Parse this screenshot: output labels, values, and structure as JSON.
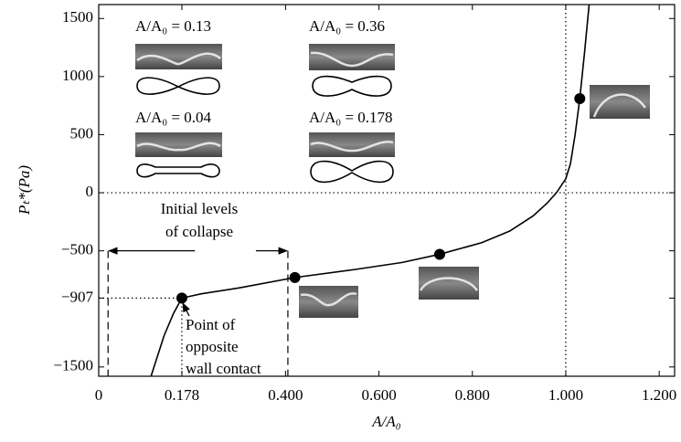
{
  "chart_data": {
    "type": "line",
    "xlabel": "A/A₀",
    "ylabel": "Pₜ*(Pa)",
    "xlim": [
      0,
      1.233
    ],
    "ylim": [
      -1580,
      1620
    ],
    "xticks": [
      0,
      {
        "value": 0.178,
        "label": "0.178"
      },
      {
        "value": 0.4,
        "label": "0.400"
      },
      {
        "value": 0.6,
        "label": "0.600"
      },
      {
        "value": 0.8,
        "label": "0.800"
      },
      {
        "value": 1.0,
        "label": "1.000"
      },
      {
        "value": 1.2,
        "label": "1.200"
      }
    ],
    "yticks": [
      {
        "value": -1500,
        "label": "−1500"
      },
      {
        "value": -907,
        "label": "−907"
      },
      {
        "value": -500,
        "label": "−500"
      },
      0,
      500,
      1000,
      1500
    ],
    "color": "#000000",
    "curve": {
      "x": [
        0.112,
        0.14,
        0.16,
        0.178,
        0.22,
        0.3,
        0.42,
        0.55,
        0.65,
        0.73,
        0.82,
        0.88,
        0.93,
        0.96,
        0.98,
        1.0,
        1.01,
        1.02,
        1.03,
        1.04,
        1.05
      ],
      "y": [
        -1580,
        -1230,
        -1040,
        -907,
        -870,
        -820,
        -730,
        -660,
        -600,
        -530,
        -430,
        -330,
        -200,
        -90,
        0,
        120,
        250,
        500,
        810,
        1200,
        1620
      ]
    },
    "points": {
      "x": [
        0.178,
        0.42,
        0.73,
        1.03
      ],
      "y": [
        -907,
        -730,
        -530,
        810
      ]
    },
    "collapse_bracket": {
      "x": [
        0.02,
        0.405
      ],
      "y": -500
    },
    "annotations": [
      "A/A₀ = 0.13",
      "A/A₀ = 0.36",
      "A/A₀ = 0.04",
      "A/A₀ = 0.178",
      "Initial levels",
      "of collapse",
      "Point of",
      "opposite",
      "wall contact"
    ]
  }
}
